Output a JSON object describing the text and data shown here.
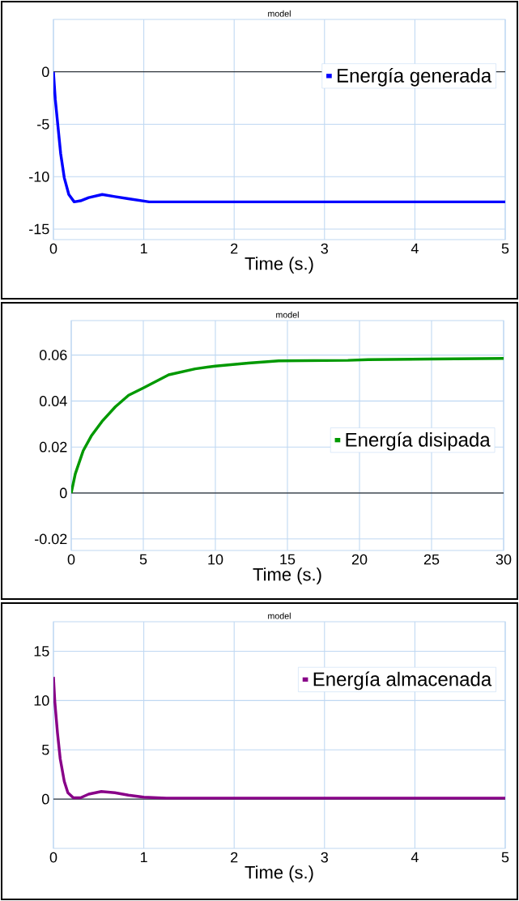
{
  "chart_data": [
    {
      "type": "line",
      "title": "model",
      "xlabel": "Time (s.)",
      "xlim": [
        0,
        5
      ],
      "ylim": [
        -16,
        5
      ],
      "xticks": [
        0,
        1,
        2,
        3,
        4,
        5
      ],
      "yticks": [
        0,
        -5,
        -10,
        -15
      ],
      "grid": true,
      "legend": "top right",
      "line_style": "solid",
      "marker": "none",
      "ref_lines": [
        {
          "axis": "y",
          "value": 0,
          "color": "#000000"
        }
      ],
      "series": [
        {
          "name": "Energía generada",
          "color": "#0000ff",
          "x": [
            0,
            0.02,
            0.05,
            0.08,
            0.12,
            0.17,
            0.23,
            0.3,
            0.39,
            0.54,
            0.68,
            0.83,
            1.06,
            2,
            3,
            4,
            5
          ],
          "values": [
            0,
            -2.6,
            -5.2,
            -7.8,
            -10.1,
            -11.7,
            -12.4,
            -12.3,
            -12,
            -11.7,
            -11.9,
            -12.1,
            -12.4,
            -12.4,
            -12.4,
            -12.4,
            -12.4
          ]
        }
      ]
    },
    {
      "type": "line",
      "title": "model",
      "xlabel": "Time (s.)",
      "xlim": [
        0,
        30
      ],
      "ylim": [
        -0.025,
        0.075
      ],
      "xticks": [
        0,
        5,
        10,
        15,
        20,
        25,
        30
      ],
      "yticks": [
        -0.02,
        0,
        0.02,
        0.04,
        0.06
      ],
      "grid": true,
      "legend": "right",
      "line_style": "solid",
      "marker": "none",
      "ref_lines": [
        {
          "axis": "y",
          "value": 0,
          "color": "#000000"
        }
      ],
      "series": [
        {
          "name": "Energía disipada",
          "color": "#009900",
          "x": [
            0,
            0.28,
            0.83,
            1.39,
            2.13,
            3.06,
            3.98,
            5,
            6.76,
            8.6,
            10,
            12.3,
            14.4,
            19.2,
            20.6,
            25,
            30
          ],
          "values": [
            0,
            0.0083,
            0.0184,
            0.0248,
            0.0311,
            0.0375,
            0.0425,
            0.0457,
            0.0514,
            0.054,
            0.0552,
            0.0565,
            0.0575,
            0.0577,
            0.058,
            0.0583,
            0.0585
          ]
        }
      ]
    },
    {
      "type": "line",
      "title": "model",
      "xlabel": "Time (s.)",
      "xlim": [
        0,
        5
      ],
      "ylim": [
        -5,
        18
      ],
      "xticks": [
        0,
        1,
        2,
        3,
        4,
        5
      ],
      "yticks": [
        0,
        5,
        10,
        15
      ],
      "grid": true,
      "legend": "top right",
      "line_style": "solid",
      "marker": "none",
      "ref_lines": [
        {
          "axis": "y",
          "value": 0,
          "color": "#000000"
        }
      ],
      "series": [
        {
          "name": "Energía almacenada",
          "color": "#880088",
          "x": [
            0,
            0.015,
            0.045,
            0.075,
            0.12,
            0.16,
            0.22,
            0.3,
            0.39,
            0.53,
            0.68,
            0.83,
            1,
            1.25,
            2,
            3,
            4,
            5
          ],
          "values": [
            12.4,
            9.9,
            6.7,
            4.1,
            1.8,
            0.65,
            0.13,
            0.13,
            0.5,
            0.77,
            0.64,
            0.4,
            0.2,
            0.1,
            0.1,
            0.1,
            0.1,
            0.1
          ]
        }
      ]
    }
  ]
}
